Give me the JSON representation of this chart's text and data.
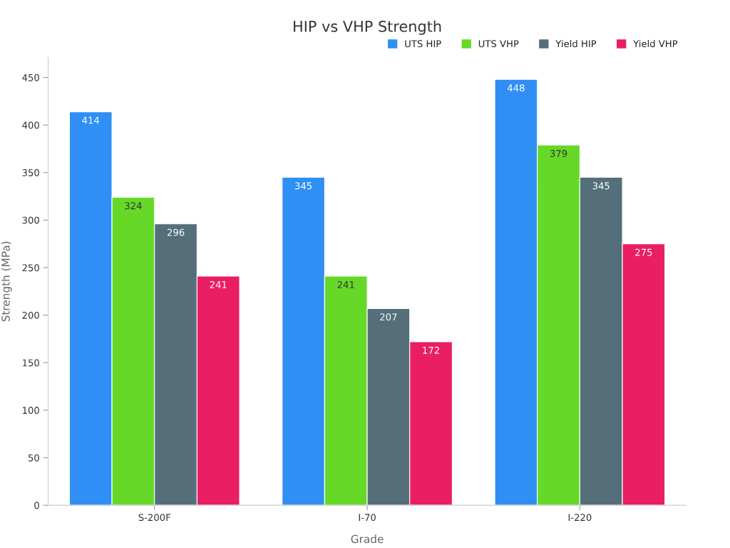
{
  "chart_data": {
    "type": "bar",
    "title": "HIP vs VHP Strength",
    "xlabel": "Grade",
    "ylabel": "Strength (MPa)",
    "categories": [
      "S-200F",
      "I-70",
      "I-220"
    ],
    "series": [
      {
        "name": "UTS HIP",
        "color": "#2f8ff5",
        "values": [
          414,
          345,
          448
        ]
      },
      {
        "name": "UTS VHP",
        "color": "#66d928",
        "values": [
          324,
          241,
          379
        ]
      },
      {
        "name": "Yield HIP",
        "color": "#546e7a",
        "values": [
          296,
          207,
          345
        ]
      },
      {
        "name": "Yield VHP",
        "color": "#e91e63",
        "values": [
          241,
          172,
          275
        ]
      }
    ],
    "ylim": [
      0,
      471
    ],
    "yticks": [
      0,
      50,
      100,
      150,
      200,
      250,
      300,
      350,
      400,
      450
    ],
    "data_labels": true,
    "legend": "top right",
    "grid": false
  }
}
